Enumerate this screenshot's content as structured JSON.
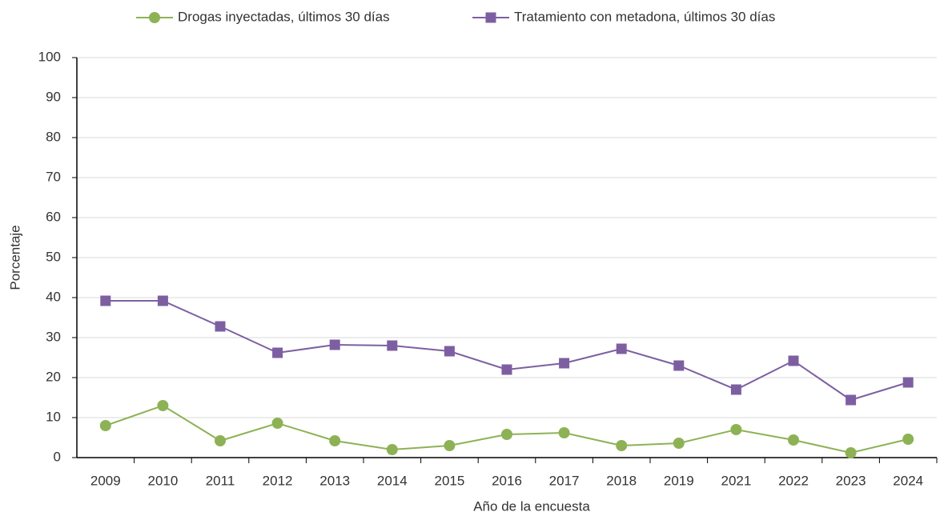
{
  "chart_data": {
    "type": "line",
    "categories": [
      "2009",
      "2010",
      "2011",
      "2012",
      "2013",
      "2014",
      "2015",
      "2016",
      "2017",
      "2018",
      "2019",
      "2021",
      "2022",
      "2023",
      "2024"
    ],
    "series": [
      {
        "name": "Drogas inyectadas, últimos 30 días",
        "color": "#8db255",
        "marker": "circle",
        "values": [
          8.0,
          13.0,
          4.2,
          8.6,
          4.2,
          2.0,
          3.0,
          5.8,
          6.2,
          3.0,
          3.6,
          7.0,
          4.4,
          1.2,
          4.6
        ]
      },
      {
        "name": "Tratamiento con metadona, últimos 30 días",
        "color": "#7d5fa1",
        "marker": "square",
        "values": [
          39.2,
          39.2,
          32.8,
          26.2,
          28.2,
          28.0,
          26.6,
          22.0,
          23.6,
          27.2,
          23.0,
          17.0,
          24.2,
          14.4,
          18.8
        ]
      }
    ],
    "xlabel": "Año de la encuesta",
    "ylabel": "Porcentaje",
    "ylim": [
      0,
      100
    ],
    "yticks": [
      0,
      10,
      20,
      30,
      40,
      50,
      60,
      70,
      80,
      90,
      100
    ],
    "grid": true,
    "legend": "top"
  }
}
